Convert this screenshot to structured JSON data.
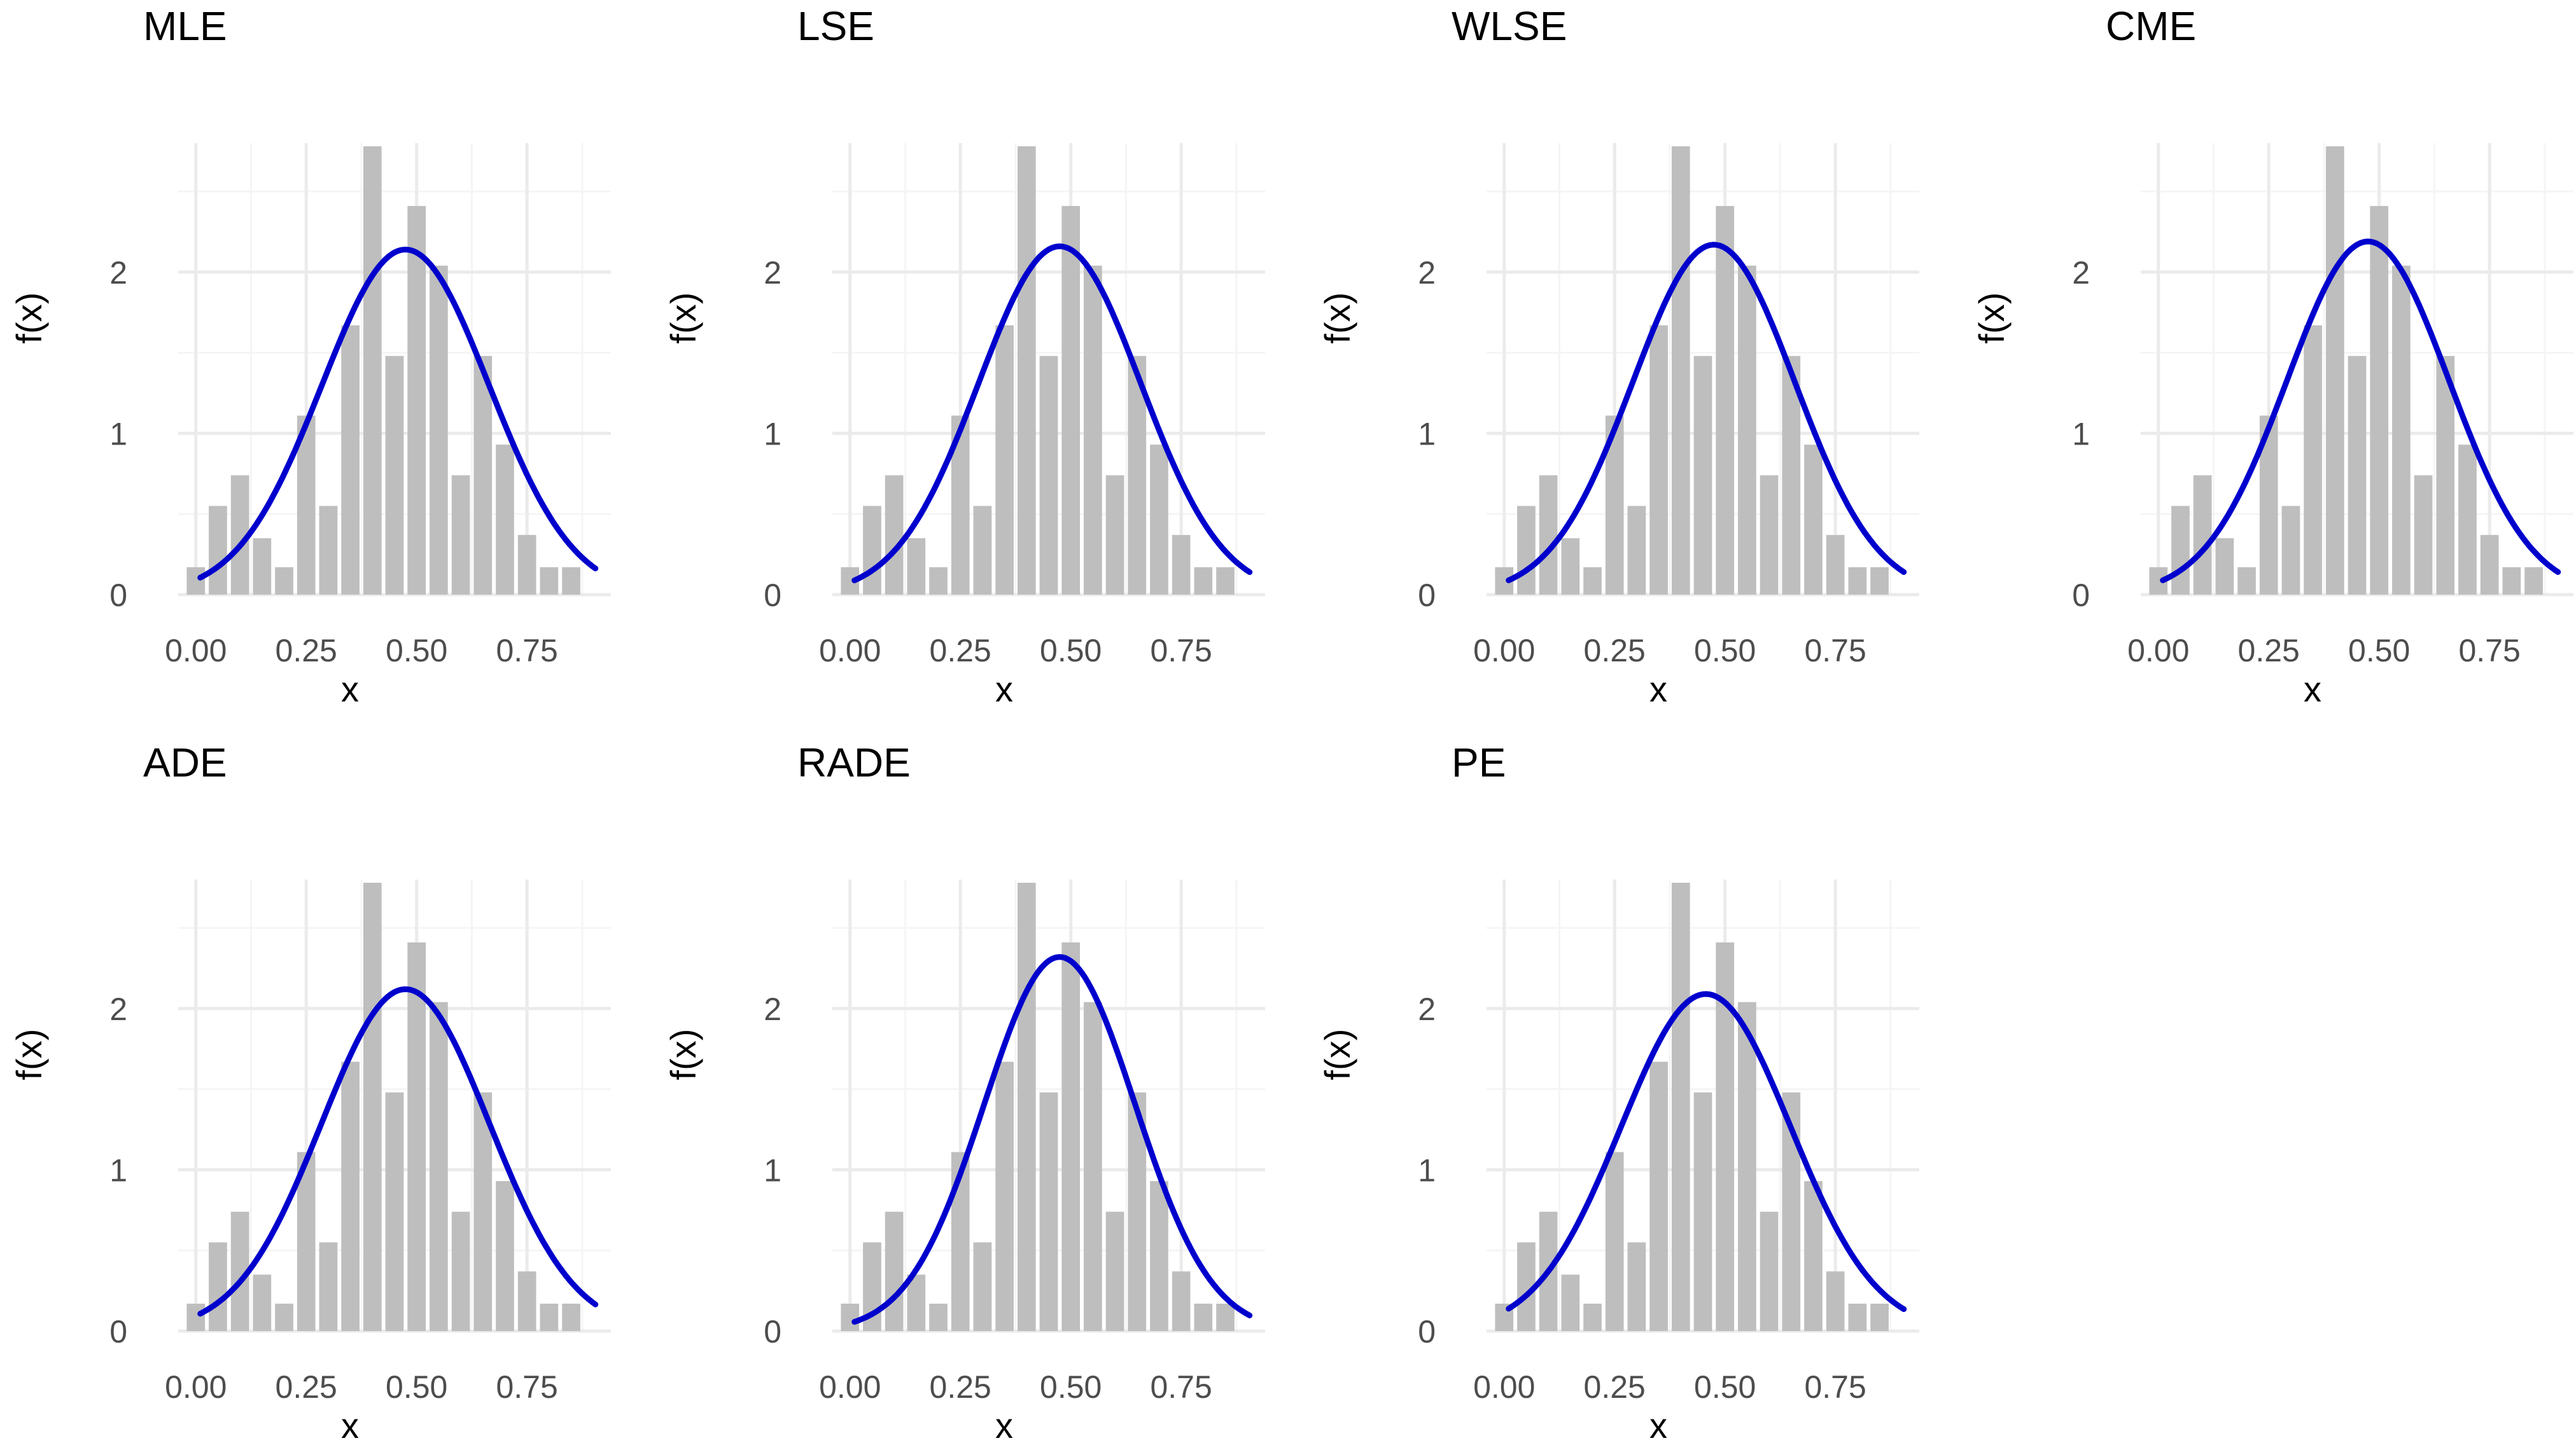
{
  "figure": {
    "colors": {
      "bar": "#bebebe",
      "curve": "#0000cd",
      "grid_major": "#ebebeb",
      "grid_minor": "#f5f5f5",
      "background": "#ffffff"
    }
  },
  "chart_data": [
    {
      "type": "bar",
      "title": "MLE",
      "xlabel": "x",
      "ylabel": "f(x)",
      "x_ticks": [
        "0.00",
        "0.25",
        "0.50",
        "0.75"
      ],
      "y_ticks": [
        "0",
        "1",
        "2"
      ],
      "xlim": [
        -0.04,
        0.94
      ],
      "ylim": [
        0,
        2.8
      ],
      "grid": true,
      "bin_width": 0.05,
      "bin_centers": [
        0.0,
        0.05,
        0.1,
        0.15,
        0.2,
        0.25,
        0.3,
        0.35,
        0.4,
        0.45,
        0.5,
        0.55,
        0.6,
        0.65,
        0.7,
        0.75,
        0.8,
        0.85,
        0.9
      ],
      "histogram": [
        0.17,
        0.55,
        0.74,
        0.35,
        0.17,
        1.11,
        0.55,
        1.67,
        2.78,
        1.48,
        2.41,
        2.04,
        0.74,
        1.48,
        0.93,
        0.37,
        0.17,
        0.17,
        0.0
      ],
      "density_curve": {
        "mu": 0.4747,
        "sigma": 0.1894,
        "peak": 2.14,
        "x_from": 0.01,
        "x_to": 0.905
      }
    },
    {
      "type": "bar",
      "title": "LSE",
      "xlabel": "x",
      "ylabel": "f(x)",
      "x_ticks": [
        "0.00",
        "0.25",
        "0.50",
        "0.75"
      ],
      "y_ticks": [
        "0",
        "1",
        "2"
      ],
      "xlim": [
        -0.04,
        0.94
      ],
      "ylim": [
        0,
        2.8
      ],
      "grid": true,
      "bin_width": 0.05,
      "bin_centers": [
        0.0,
        0.05,
        0.1,
        0.15,
        0.2,
        0.25,
        0.3,
        0.35,
        0.4,
        0.45,
        0.5,
        0.55,
        0.6,
        0.65,
        0.7,
        0.75,
        0.8,
        0.85,
        0.9
      ],
      "histogram": [
        0.17,
        0.55,
        0.74,
        0.35,
        0.17,
        1.11,
        0.55,
        1.67,
        2.78,
        1.48,
        2.41,
        2.04,
        0.74,
        1.48,
        0.93,
        0.37,
        0.17,
        0.17,
        0.0
      ],
      "density_curve": {
        "mu": 0.4747,
        "sigma": 0.1838,
        "peak": 2.16,
        "x_from": 0.01,
        "x_to": 0.905
      }
    },
    {
      "type": "bar",
      "title": "WLSE",
      "xlabel": "x",
      "ylabel": "f(x)",
      "x_ticks": [
        "0.00",
        "0.25",
        "0.50",
        "0.75"
      ],
      "y_ticks": [
        "0",
        "1",
        "2"
      ],
      "xlim": [
        -0.04,
        0.94
      ],
      "ylim": [
        0,
        2.8
      ],
      "grid": true,
      "bin_width": 0.05,
      "bin_centers": [
        0.0,
        0.05,
        0.1,
        0.15,
        0.2,
        0.25,
        0.3,
        0.35,
        0.4,
        0.45,
        0.5,
        0.55,
        0.6,
        0.65,
        0.7,
        0.75,
        0.8,
        0.85,
        0.9
      ],
      "histogram": [
        0.17,
        0.55,
        0.74,
        0.35,
        0.17,
        1.11,
        0.55,
        1.67,
        2.78,
        1.48,
        2.41,
        2.04,
        0.74,
        1.48,
        0.93,
        0.37,
        0.17,
        0.17,
        0.0
      ],
      "density_curve": {
        "mu": 0.4747,
        "sigma": 0.1838,
        "peak": 2.17,
        "x_from": 0.01,
        "x_to": 0.905
      }
    },
    {
      "type": "bar",
      "title": "CME",
      "xlabel": "x",
      "ylabel": "f(x)",
      "x_ticks": [
        "0.00",
        "0.25",
        "0.50",
        "0.75"
      ],
      "y_ticks": [
        "0",
        "1",
        "2"
      ],
      "xlim": [
        -0.04,
        0.94
      ],
      "ylim": [
        0,
        2.8
      ],
      "grid": true,
      "bin_width": 0.05,
      "bin_centers": [
        0.0,
        0.05,
        0.1,
        0.15,
        0.2,
        0.25,
        0.3,
        0.35,
        0.4,
        0.45,
        0.5,
        0.55,
        0.6,
        0.65,
        0.7,
        0.75,
        0.8,
        0.85,
        0.9
      ],
      "histogram": [
        0.17,
        0.55,
        0.74,
        0.35,
        0.17,
        1.11,
        0.55,
        1.67,
        2.78,
        1.48,
        2.41,
        2.04,
        0.74,
        1.48,
        0.93,
        0.37,
        0.17,
        0.17,
        0.0
      ],
      "density_curve": {
        "mu": 0.4747,
        "sigma": 0.1835,
        "peak": 2.19,
        "x_from": 0.01,
        "x_to": 0.905
      }
    },
    {
      "type": "bar",
      "title": "ADE",
      "xlabel": "x",
      "ylabel": "f(x)",
      "x_ticks": [
        "0.00",
        "0.25",
        "0.50",
        "0.75"
      ],
      "y_ticks": [
        "0",
        "1",
        "2"
      ],
      "xlim": [
        -0.04,
        0.94
      ],
      "ylim": [
        0,
        2.8
      ],
      "grid": true,
      "bin_width": 0.05,
      "bin_centers": [
        0.0,
        0.05,
        0.1,
        0.15,
        0.2,
        0.25,
        0.3,
        0.35,
        0.4,
        0.45,
        0.5,
        0.55,
        0.6,
        0.65,
        0.7,
        0.75,
        0.8,
        0.85,
        0.9
      ],
      "histogram": [
        0.17,
        0.55,
        0.74,
        0.35,
        0.17,
        1.11,
        0.55,
        1.67,
        2.78,
        1.48,
        2.41,
        2.04,
        0.74,
        1.48,
        0.93,
        0.37,
        0.17,
        0.17,
        0.0
      ],
      "density_curve": {
        "mu": 0.4747,
        "sigma": 0.1904,
        "peak": 2.12,
        "x_from": 0.01,
        "x_to": 0.905
      }
    },
    {
      "type": "bar",
      "title": "RADE",
      "xlabel": "x",
      "ylabel": "f(x)",
      "x_ticks": [
        "0.00",
        "0.25",
        "0.50",
        "0.75"
      ],
      "y_ticks": [
        "0",
        "1",
        "2"
      ],
      "xlim": [
        -0.04,
        0.94
      ],
      "ylim": [
        0,
        2.8
      ],
      "grid": true,
      "bin_width": 0.05,
      "bin_centers": [
        0.0,
        0.05,
        0.1,
        0.15,
        0.2,
        0.25,
        0.3,
        0.35,
        0.4,
        0.45,
        0.5,
        0.55,
        0.6,
        0.65,
        0.7,
        0.75,
        0.8,
        0.85,
        0.9
      ],
      "histogram": [
        0.17,
        0.55,
        0.74,
        0.35,
        0.17,
        1.11,
        0.55,
        1.67,
        2.78,
        1.48,
        2.41,
        2.04,
        0.74,
        1.48,
        0.93,
        0.37,
        0.17,
        0.17,
        0.0
      ],
      "density_curve": {
        "mu": 0.4747,
        "sigma": 0.1708,
        "peak": 2.32,
        "x_from": 0.01,
        "x_to": 0.905
      }
    },
    {
      "type": "bar",
      "title": "PE",
      "xlabel": "x",
      "ylabel": "f(x)",
      "x_ticks": [
        "0.00",
        "0.25",
        "0.50",
        "0.75"
      ],
      "y_ticks": [
        "0",
        "1",
        "2"
      ],
      "xlim": [
        -0.04,
        0.94
      ],
      "ylim": [
        0,
        2.8
      ],
      "grid": true,
      "bin_width": 0.05,
      "bin_centers": [
        0.0,
        0.05,
        0.1,
        0.15,
        0.2,
        0.25,
        0.3,
        0.35,
        0.4,
        0.45,
        0.5,
        0.55,
        0.6,
        0.65,
        0.7,
        0.75,
        0.8,
        0.85,
        0.9
      ],
      "histogram": [
        0.17,
        0.55,
        0.74,
        0.35,
        0.17,
        1.11,
        0.55,
        1.67,
        2.78,
        1.48,
        2.41,
        2.04,
        0.74,
        1.48,
        0.93,
        0.37,
        0.17,
        0.17,
        0.0
      ],
      "density_curve": {
        "mu": 0.4566,
        "sigma": 0.1918,
        "peak": 2.09,
        "x_from": 0.01,
        "x_to": 0.905
      }
    }
  ]
}
